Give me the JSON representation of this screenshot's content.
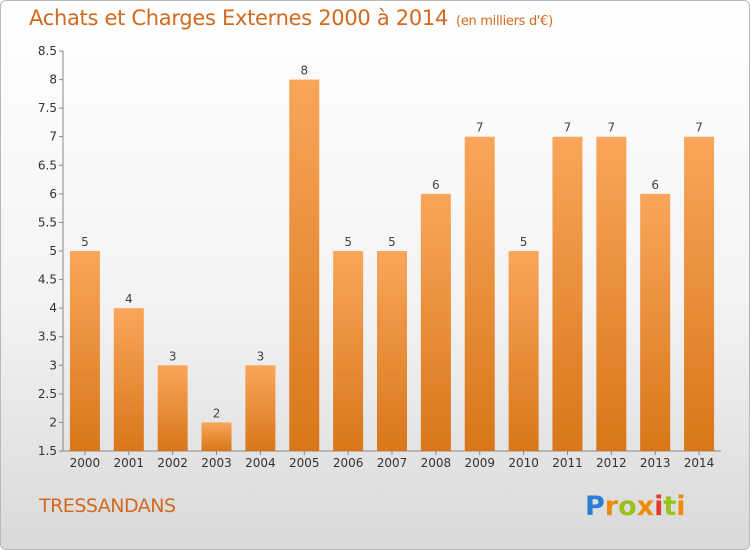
{
  "title": "Achats et Charges Externes 2000 à 2014",
  "subtitle": "(en milliers d'€)",
  "commune": "TRESSANDANS",
  "logo": {
    "text": "Proxiti"
  },
  "colors": {
    "bar_top": "#f9a65a",
    "bar_bottom": "#d97619",
    "text_accent": "#d2691e"
  },
  "chart_data": {
    "type": "bar",
    "title": "Achats et Charges Externes 2000 à 2014",
    "subtitle": "(en milliers d'€)",
    "xlabel": "",
    "ylabel": "",
    "categories": [
      "2000",
      "2001",
      "2002",
      "2003",
      "2004",
      "2005",
      "2006",
      "2007",
      "2008",
      "2009",
      "2010",
      "2011",
      "2012",
      "2013",
      "2014"
    ],
    "values": [
      5,
      4,
      3,
      2,
      3,
      8,
      5,
      5,
      6,
      7,
      5,
      7,
      7,
      6,
      7
    ],
    "ylim": [
      1.5,
      8.5
    ],
    "yticks": [
      "1.5",
      "2",
      "2.5",
      "3",
      "3.5",
      "4",
      "4.5",
      "5",
      "5.5",
      "6",
      "6.5",
      "7",
      "7.5",
      "8",
      "8.5"
    ],
    "grid": false,
    "legend": "none",
    "data_labels": true
  }
}
